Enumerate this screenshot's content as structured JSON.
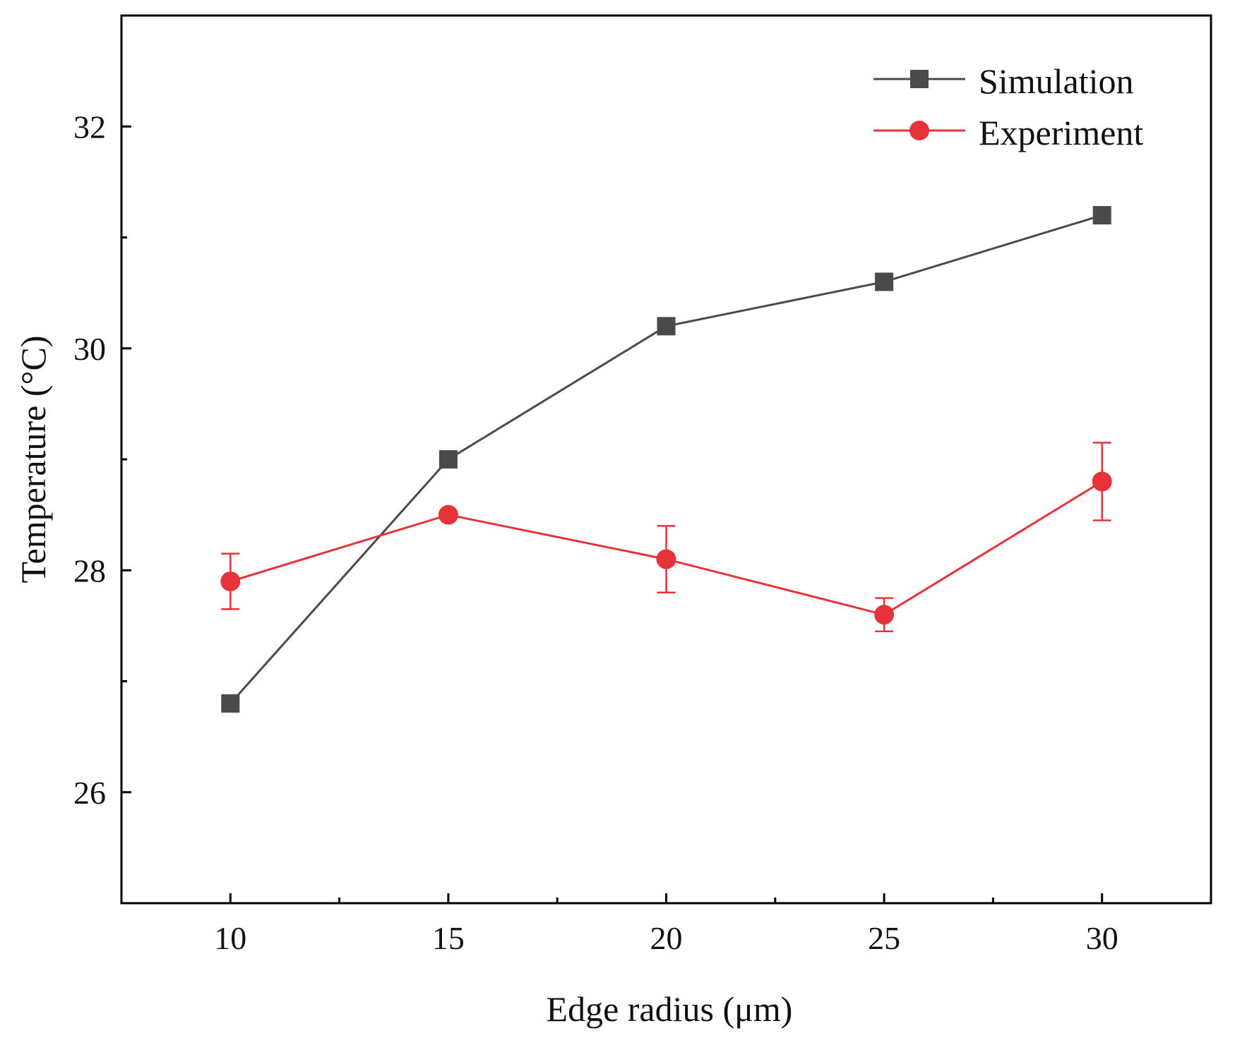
{
  "chart_data": {
    "type": "line",
    "title": "",
    "xlabel": "Edge radius (μm)",
    "ylabel": "Temperature (°C)",
    "x": [
      10,
      15,
      20,
      25,
      30
    ],
    "x_ticks": [
      10,
      15,
      20,
      25,
      30
    ],
    "x_tick_labels": [
      "10",
      "15",
      "20",
      "25",
      "30"
    ],
    "x_minor_ticks": [
      12.5,
      17.5,
      22.5,
      27.5
    ],
    "xlim": [
      7.5,
      32.5
    ],
    "y_ticks": [
      26,
      28,
      30,
      32
    ],
    "y_tick_labels": [
      "26",
      "28",
      "30",
      "32"
    ],
    "y_minor_ticks": [
      27,
      29,
      31
    ],
    "ylim": [
      25,
      33
    ],
    "grid": false,
    "legend_position": "top-right",
    "series": [
      {
        "name": "Simulation",
        "marker": "square",
        "color": "#4a4a4a",
        "values": [
          26.8,
          29.0,
          30.2,
          30.6,
          31.2
        ]
      },
      {
        "name": "Experiment",
        "marker": "circle",
        "color": "#e8323a",
        "values": [
          27.9,
          28.5,
          28.1,
          27.6,
          28.8
        ],
        "error": [
          0.25,
          0.0,
          0.3,
          0.15,
          0.35
        ]
      }
    ]
  }
}
